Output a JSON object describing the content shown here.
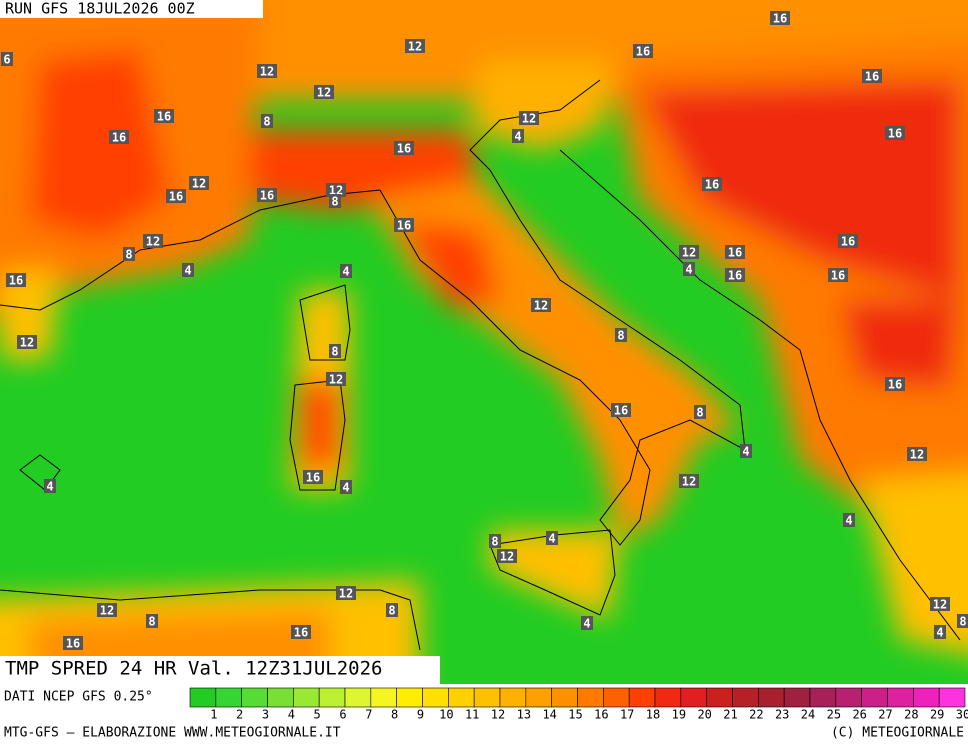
{
  "header": {
    "run": "RUN GFS 18JUL2026 00Z"
  },
  "map": {
    "contour_labels": [
      6,
      16,
      12,
      16,
      12,
      16,
      12,
      16,
      8,
      16,
      12,
      4,
      16,
      16,
      12,
      16,
      16,
      16,
      12,
      8,
      16,
      12,
      8,
      12,
      16,
      4,
      4,
      4,
      16,
      16,
      16,
      16,
      12,
      12,
      8,
      8,
      12,
      16,
      16,
      8,
      4,
      12,
      16,
      4,
      4,
      12,
      4,
      8,
      4,
      12,
      12,
      12,
      8,
      8,
      12,
      16,
      16,
      4,
      4,
      8
    ]
  },
  "footer": {
    "title": "TMP SPRED 24 HR Val. 12Z31JUL2026",
    "source": "DATI NCEP GFS 0.25°",
    "credit": "MTG-GFS — ELABORAZIONE WWW.METEOGIORNALE.IT",
    "copyright": "(C) METEOGIORNALE"
  },
  "colorbar": {
    "levels": [
      1,
      2,
      3,
      4,
      5,
      6,
      7,
      8,
      9,
      10,
      11,
      12,
      13,
      14,
      15,
      16,
      17,
      18,
      19,
      20,
      21,
      22,
      23,
      24,
      25,
      26,
      27,
      28,
      29,
      30
    ],
    "colors": [
      "#22cc22",
      "#33d633",
      "#55dd33",
      "#77e033",
      "#99e833",
      "#bbf033",
      "#ddf533",
      "#f5f522",
      "#ffee00",
      "#ffe000",
      "#ffd000",
      "#ffc000",
      "#ffb000",
      "#ffa000",
      "#ff9000",
      "#ff7a00",
      "#ff6000",
      "#ff4000",
      "#f02a10",
      "#e02020",
      "#cc2020",
      "#b82028",
      "#a82030",
      "#a02040",
      "#a82058",
      "#b82070",
      "#cc2088",
      "#dd22a0",
      "#ee22bb",
      "#ff33dd"
    ]
  }
}
